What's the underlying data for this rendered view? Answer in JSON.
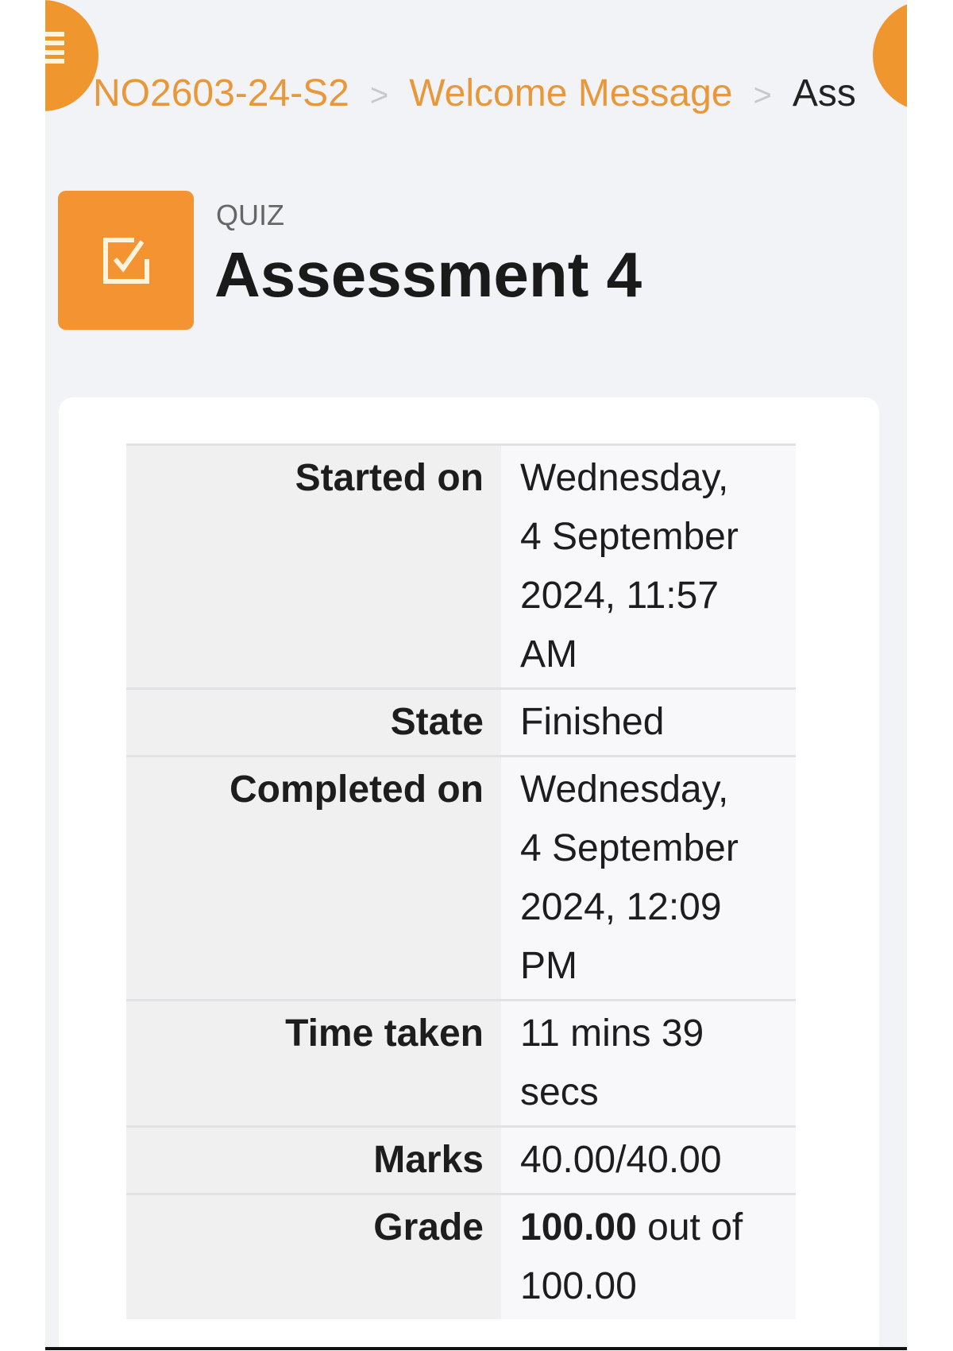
{
  "breadcrumb": [
    {
      "label": "NO2603-24-S2"
    },
    {
      "label": "Welcome Message"
    },
    {
      "label": "Ass"
    }
  ],
  "breadcrumb_separator": ">",
  "header": {
    "module_type": "QUIZ",
    "title": "Assessment 4",
    "icon": "quiz-checkbox-icon"
  },
  "summary": [
    {
      "label": "Started on",
      "value": "Wednesday, 4 September 2024, 11:57 AM"
    },
    {
      "label": "State",
      "value": "Finished"
    },
    {
      "label": "Completed on",
      "value": "Wednesday, 4 September 2024, 12:09 PM"
    },
    {
      "label": "Time taken",
      "value": "11 mins 39 secs"
    },
    {
      "label": "Marks",
      "value": "40.00/40.00"
    },
    {
      "label": "Grade",
      "value_bold": "100.00",
      "value": " out of 100.00"
    }
  ],
  "colors": {
    "accent": "#f39332",
    "link": "#e8983a",
    "background": "#f2f3f7"
  }
}
